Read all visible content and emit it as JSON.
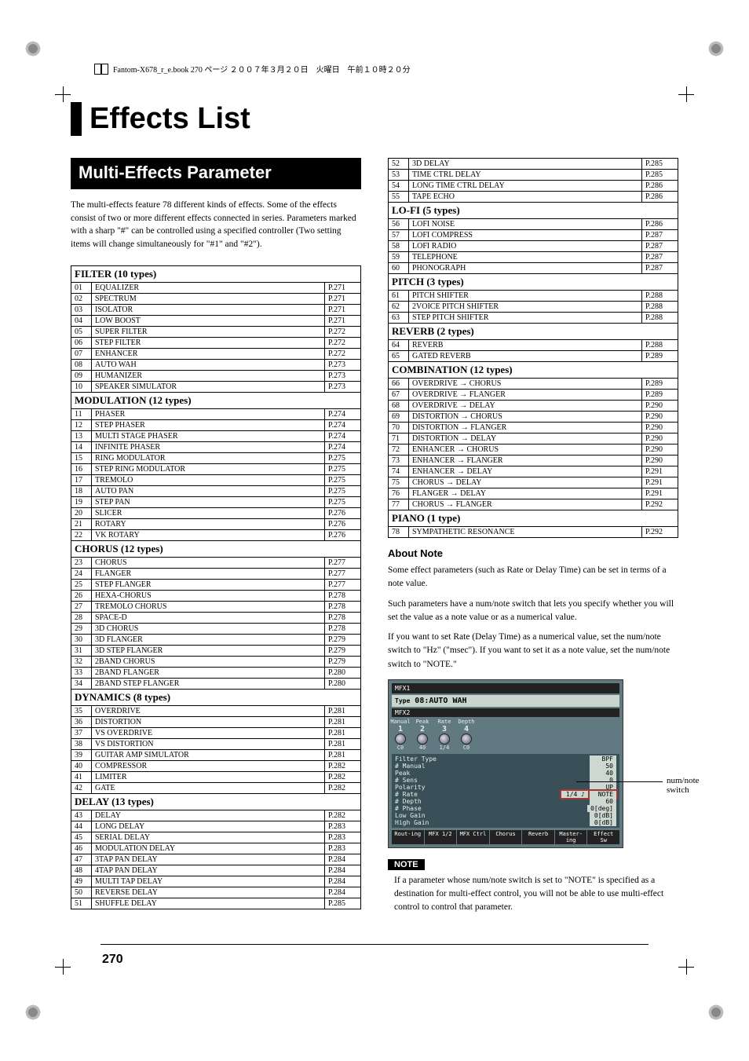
{
  "header_note": "Fantom-X678_r_e.book 270 ページ ２００７年３月２０日　火曜日　午前１０時２０分",
  "title": "Effects List",
  "section_banner": "Multi-Effects Parameter",
  "intro": "The multi-effects feature 78 different kinds of effects. Some of the effects consist of two or more different effects connected in series. Parameters marked with a sharp \"#\" can be controlled using a specified controller (Two setting items will change simultaneously for \"#1\" and \"#2\").",
  "left_groups": [
    {
      "category": "FILTER (10 types)",
      "rows": [
        {
          "n": "01",
          "name": "EQUALIZER",
          "page": "P.271"
        },
        {
          "n": "02",
          "name": "SPECTRUM",
          "page": "P.271"
        },
        {
          "n": "03",
          "name": "ISOLATOR",
          "page": "P.271"
        },
        {
          "n": "04",
          "name": "LOW BOOST",
          "page": "P.271"
        },
        {
          "n": "05",
          "name": "SUPER FILTER",
          "page": "P.272"
        },
        {
          "n": "06",
          "name": "STEP FILTER",
          "page": "P.272"
        },
        {
          "n": "07",
          "name": "ENHANCER",
          "page": "P.272"
        },
        {
          "n": "08",
          "name": "AUTO WAH",
          "page": "P.273"
        },
        {
          "n": "09",
          "name": "HUMANIZER",
          "page": "P.273"
        },
        {
          "n": "10",
          "name": "SPEAKER SIMULATOR",
          "page": "P.273"
        }
      ]
    },
    {
      "category": "MODULATION (12 types)",
      "rows": [
        {
          "n": "11",
          "name": "PHASER",
          "page": "P.274"
        },
        {
          "n": "12",
          "name": "STEP PHASER",
          "page": "P.274"
        },
        {
          "n": "13",
          "name": "MULTI STAGE PHASER",
          "page": "P.274"
        },
        {
          "n": "14",
          "name": "INFINITE PHASER",
          "page": "P.274"
        },
        {
          "n": "15",
          "name": "RING MODULATOR",
          "page": "P.275"
        },
        {
          "n": "16",
          "name": "STEP RING MODULATOR",
          "page": "P.275"
        },
        {
          "n": "17",
          "name": "TREMOLO",
          "page": "P.275"
        },
        {
          "n": "18",
          "name": "AUTO PAN",
          "page": "P.275"
        },
        {
          "n": "19",
          "name": "STEP PAN",
          "page": "P.275"
        },
        {
          "n": "20",
          "name": "SLICER",
          "page": "P.276"
        },
        {
          "n": "21",
          "name": "ROTARY",
          "page": "P.276"
        },
        {
          "n": "22",
          "name": "VK ROTARY",
          "page": "P.276"
        }
      ]
    },
    {
      "category": "CHORUS (12 types)",
      "rows": [
        {
          "n": "23",
          "name": "CHORUS",
          "page": "P.277"
        },
        {
          "n": "24",
          "name": "FLANGER",
          "page": "P.277"
        },
        {
          "n": "25",
          "name": "STEP FLANGER",
          "page": "P.277"
        },
        {
          "n": "26",
          "name": "HEXA-CHORUS",
          "page": "P.278"
        },
        {
          "n": "27",
          "name": "TREMOLO CHORUS",
          "page": "P.278"
        },
        {
          "n": "28",
          "name": "SPACE-D",
          "page": "P.278"
        },
        {
          "n": "29",
          "name": "3D CHORUS",
          "page": "P.278"
        },
        {
          "n": "30",
          "name": "3D FLANGER",
          "page": "P.279"
        },
        {
          "n": "31",
          "name": "3D STEP FLANGER",
          "page": "P.279"
        },
        {
          "n": "32",
          "name": "2BAND CHORUS",
          "page": "P.279"
        },
        {
          "n": "33",
          "name": "2BAND FLANGER",
          "page": "P.280"
        },
        {
          "n": "34",
          "name": "2BAND STEP FLANGER",
          "page": "P.280"
        }
      ]
    },
    {
      "category": "DYNAMICS (8 types)",
      "rows": [
        {
          "n": "35",
          "name": "OVERDRIVE",
          "page": "P.281"
        },
        {
          "n": "36",
          "name": "DISTORTION",
          "page": "P.281"
        },
        {
          "n": "37",
          "name": "VS OVERDRIVE",
          "page": "P.281"
        },
        {
          "n": "38",
          "name": "VS DISTORTION",
          "page": "P.281"
        },
        {
          "n": "39",
          "name": "GUITAR AMP SIMULATOR",
          "page": "P.281"
        },
        {
          "n": "40",
          "name": "COMPRESSOR",
          "page": "P.282"
        },
        {
          "n": "41",
          "name": "LIMITER",
          "page": "P.282"
        },
        {
          "n": "42",
          "name": "GATE",
          "page": "P.282"
        }
      ]
    },
    {
      "category": "DELAY (13 types)",
      "rows": [
        {
          "n": "43",
          "name": "DELAY",
          "page": "P.282"
        },
        {
          "n": "44",
          "name": "LONG DELAY",
          "page": "P.283"
        },
        {
          "n": "45",
          "name": "SERIAL DELAY",
          "page": "P.283"
        },
        {
          "n": "46",
          "name": "MODULATION DELAY",
          "page": "P.283"
        },
        {
          "n": "47",
          "name": "3TAP PAN DELAY",
          "page": "P.284"
        },
        {
          "n": "48",
          "name": "4TAP PAN DELAY",
          "page": "P.284"
        },
        {
          "n": "49",
          "name": "MULTI TAP DELAY",
          "page": "P.284"
        },
        {
          "n": "50",
          "name": "REVERSE DELAY",
          "page": "P.284"
        },
        {
          "n": "51",
          "name": "SHUFFLE DELAY",
          "page": "P.285"
        }
      ]
    }
  ],
  "right_groups": [
    {
      "rows": [
        {
          "n": "52",
          "name": "3D DELAY",
          "page": "P.285"
        },
        {
          "n": "53",
          "name": "TIME CTRL DELAY",
          "page": "P.285"
        },
        {
          "n": "54",
          "name": "LONG TIME CTRL DELAY",
          "page": "P.286"
        },
        {
          "n": "55",
          "name": "TAPE ECHO",
          "page": "P.286"
        }
      ]
    },
    {
      "category": "LO-FI (5 types)",
      "rows": [
        {
          "n": "56",
          "name": "LOFI NOISE",
          "page": "P.286"
        },
        {
          "n": "57",
          "name": "LOFI COMPRESS",
          "page": "P.287"
        },
        {
          "n": "58",
          "name": "LOFI RADIO",
          "page": "P.287"
        },
        {
          "n": "59",
          "name": "TELEPHONE",
          "page": "P.287"
        },
        {
          "n": "60",
          "name": "PHONOGRAPH",
          "page": "P.287"
        }
      ]
    },
    {
      "category": "PITCH (3 types)",
      "rows": [
        {
          "n": "61",
          "name": "PITCH SHIFTER",
          "page": "P.288"
        },
        {
          "n": "62",
          "name": "2VOICE PITCH SHIFTER",
          "page": "P.288"
        },
        {
          "n": "63",
          "name": "STEP PITCH SHIFTER",
          "page": "P.288"
        }
      ]
    },
    {
      "category": "REVERB (2 types)",
      "rows": [
        {
          "n": "64",
          "name": "REVERB",
          "page": "P.288"
        },
        {
          "n": "65",
          "name": "GATED REVERB",
          "page": "P.289"
        }
      ]
    },
    {
      "category": "COMBINATION (12 types)",
      "rows": [
        {
          "n": "66",
          "name": "OVERDRIVE → CHORUS",
          "page": "P.289"
        },
        {
          "n": "67",
          "name": "OVERDRIVE → FLANGER",
          "page": "P.289"
        },
        {
          "n": "68",
          "name": "OVERDRIVE → DELAY",
          "page": "P.290"
        },
        {
          "n": "69",
          "name": "DISTORTION → CHORUS",
          "page": "P.290"
        },
        {
          "n": "70",
          "name": "DISTORTION → FLANGER",
          "page": "P.290"
        },
        {
          "n": "71",
          "name": "DISTORTION → DELAY",
          "page": "P.290"
        },
        {
          "n": "72",
          "name": "ENHANCER → CHORUS",
          "page": "P.290"
        },
        {
          "n": "73",
          "name": "ENHANCER → FLANGER",
          "page": "P.290"
        },
        {
          "n": "74",
          "name": "ENHANCER → DELAY",
          "page": "P.291"
        },
        {
          "n": "75",
          "name": "CHORUS → DELAY",
          "page": "P.291"
        },
        {
          "n": "76",
          "name": "FLANGER → DELAY",
          "page": "P.291"
        },
        {
          "n": "77",
          "name": "CHORUS → FLANGER",
          "page": "P.292"
        }
      ]
    },
    {
      "category": "PIANO (1 type)",
      "rows": [
        {
          "n": "78",
          "name": "SYMPATHETIC RESONANCE",
          "page": "P.292"
        }
      ]
    }
  ],
  "about_heading": "About Note",
  "about_p1": "Some effect parameters (such as Rate or Delay Time) can be set in terms of a note value.",
  "about_p2": "Such parameters have a num/note switch that lets you specify whether you will set the value as a note value or as a numerical value.",
  "about_p3": "If you want to set Rate (Delay Time) as a numerical value, set the num/note switch to \"Hz\" (\"msec\"). If you want to set it as a note value, set the num/note switch to \"NOTE.\"",
  "lcd": {
    "tab1": "MFX1",
    "tab2": "MFX2",
    "type_label": "Type",
    "type_value": "08:AUTO WAH",
    "knobs": [
      {
        "label": "Manual",
        "num": "1",
        "val": "C0"
      },
      {
        "label": "Peak",
        "num": "2",
        "val": "40"
      },
      {
        "label": "Rate",
        "num": "3",
        "val": "1/4"
      },
      {
        "label": "Depth",
        "num": "4",
        "val": "C0"
      }
    ],
    "params": [
      {
        "label": "Filter Type",
        "val": "BPF"
      },
      {
        "label": "# Manual",
        "val": "50"
      },
      {
        "label": "Peak",
        "val": "40"
      },
      {
        "label": "# Sens",
        "val": "0"
      },
      {
        "label": "Polarity",
        "val": "UP"
      },
      {
        "label": "# Rate",
        "val": "1/4  ♪",
        "extra": "NOTE",
        "hl": true
      },
      {
        "label": "# Depth",
        "val": "60"
      },
      {
        "label": "# Phase",
        "val": "0[deg]"
      },
      {
        "label": "Low Gain",
        "val": "0[dB]"
      },
      {
        "label": "High Gain",
        "val": "0[dB]"
      }
    ],
    "bottom": [
      "Rout-ing",
      "MFX 1/2",
      "MFX Ctrl",
      "Chorus",
      "Reverb",
      "Master-ing",
      "Effect Sw"
    ]
  },
  "callout": "num/note switch",
  "note_tag": "NOTE",
  "note_text": "If a parameter whose num/note switch is set to \"NOTE\" is specified as a destination for multi-effect control, you will not be able to use multi-effect control to control that parameter.",
  "page_num": "270"
}
